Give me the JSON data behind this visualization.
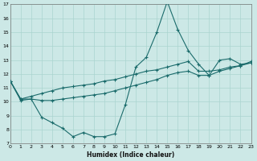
{
  "xlabel": "Humidex (Indice chaleur)",
  "xlim": [
    0,
    23
  ],
  "ylim": [
    7,
    17
  ],
  "yticks": [
    7,
    8,
    9,
    10,
    11,
    12,
    13,
    14,
    15,
    16,
    17
  ],
  "xticks": [
    0,
    1,
    2,
    3,
    4,
    5,
    6,
    7,
    8,
    9,
    10,
    11,
    12,
    13,
    14,
    15,
    16,
    17,
    18,
    19,
    20,
    21,
    22,
    23
  ],
  "background_color": "#cce8e6",
  "grid_color": "#aad4d0",
  "line_color": "#1a6b6b",
  "series": {
    "line1_x": [
      0,
      1,
      2,
      3,
      4,
      5,
      6,
      7,
      8,
      9,
      10,
      11,
      12,
      13,
      14,
      15,
      16,
      17,
      18,
      19,
      20,
      21,
      22,
      23
    ],
    "line1_y": [
      11.5,
      10.1,
      10.2,
      8.9,
      8.5,
      8.1,
      7.5,
      7.8,
      7.5,
      7.5,
      7.7,
      9.8,
      12.5,
      13.2,
      15.0,
      17.2,
      15.2,
      13.7,
      12.7,
      11.9,
      13.0,
      13.1,
      12.7,
      12.8
    ],
    "line2_x": [
      0,
      1,
      2,
      3,
      4,
      5,
      6,
      7,
      8,
      9,
      10,
      11,
      12,
      13,
      14,
      15,
      16,
      17,
      18,
      19,
      20,
      21,
      22,
      23
    ],
    "line2_y": [
      11.5,
      10.2,
      10.2,
      10.1,
      10.1,
      10.2,
      10.3,
      10.4,
      10.5,
      10.6,
      10.8,
      11.0,
      11.2,
      11.4,
      11.6,
      11.9,
      12.1,
      12.2,
      11.9,
      11.9,
      12.2,
      12.4,
      12.6,
      12.8
    ],
    "line3_x": [
      0,
      1,
      2,
      3,
      4,
      5,
      6,
      7,
      8,
      9,
      10,
      11,
      12,
      13,
      14,
      15,
      16,
      17,
      18,
      19,
      20,
      21,
      22,
      23
    ],
    "line3_y": [
      11.5,
      10.2,
      10.4,
      10.6,
      10.8,
      11.0,
      11.1,
      11.2,
      11.3,
      11.5,
      11.6,
      11.8,
      12.0,
      12.2,
      12.3,
      12.5,
      12.7,
      12.9,
      12.2,
      12.2,
      12.3,
      12.5,
      12.6,
      12.9
    ]
  }
}
